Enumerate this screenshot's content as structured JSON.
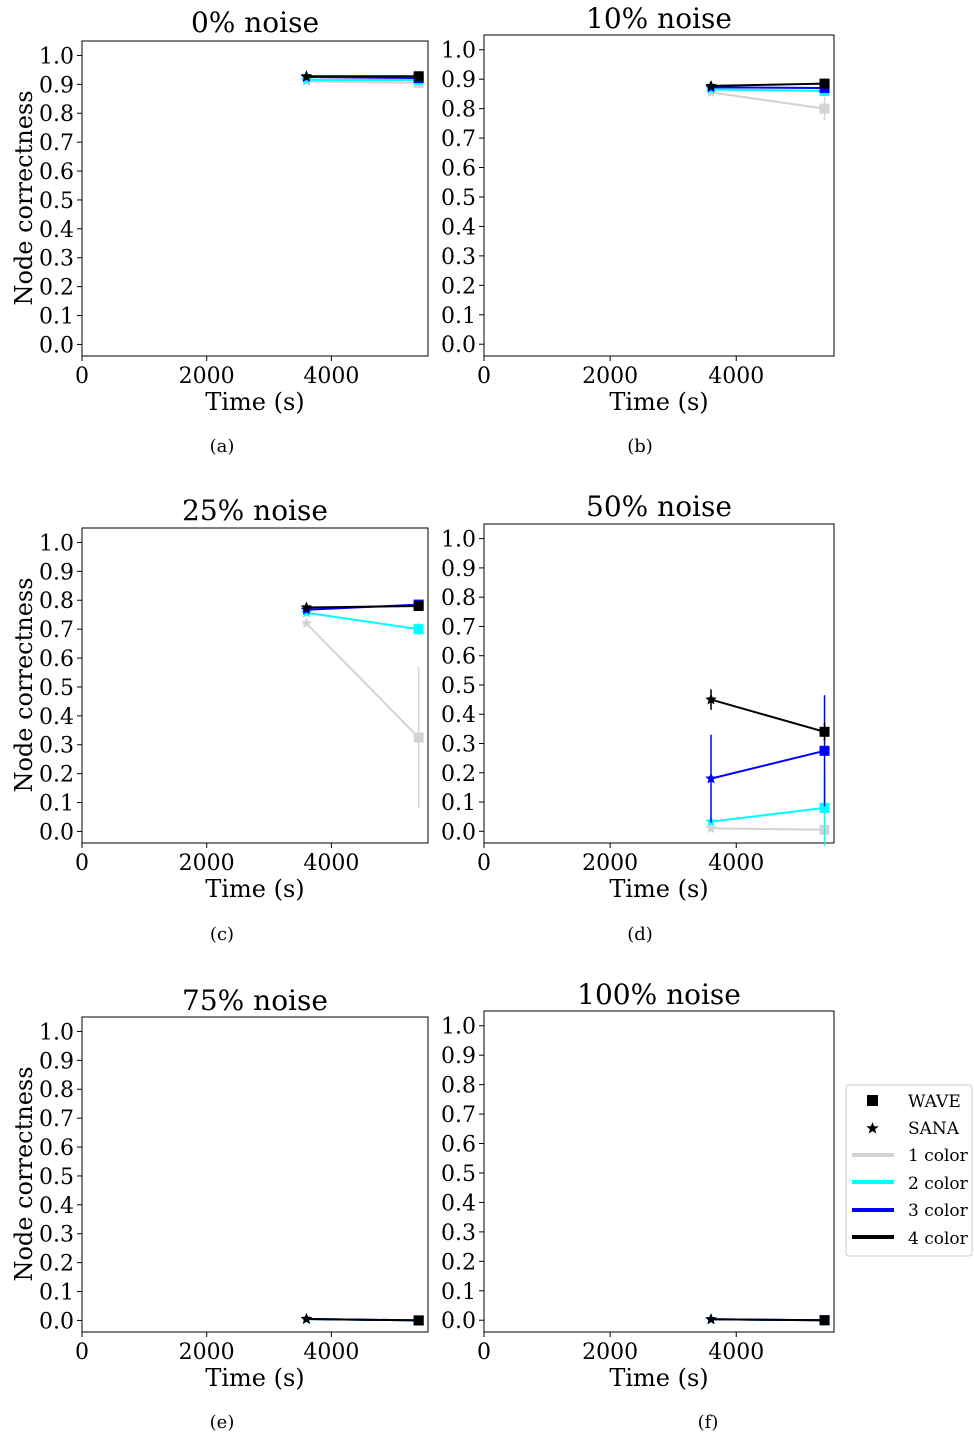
{
  "figure": {
    "captions": [
      "(a)",
      "(b)",
      "(c)",
      "(d)",
      "(e)",
      "(f)"
    ]
  },
  "legend": {
    "entries": [
      {
        "label": "WAVE",
        "kind": "marker",
        "marker": "square",
        "color": "#000000"
      },
      {
        "label": "SANA",
        "kind": "marker",
        "marker": "star",
        "color": "#000000"
      },
      {
        "label": "1 color",
        "kind": "line",
        "color": "#d3d3d3"
      },
      {
        "label": "2 color",
        "kind": "line",
        "color": "#00ffff"
      },
      {
        "label": "3 color",
        "kind": "line",
        "color": "#0000ff"
      },
      {
        "label": "4 color",
        "kind": "line",
        "color": "#000000"
      }
    ]
  },
  "chart_data": [
    {
      "type": "line",
      "title": "0% noise",
      "xlabel": "Time (s)",
      "ylabel": "Node correctness",
      "xlim": [
        0,
        5550
      ],
      "ylim": [
        -0.04,
        1.05
      ],
      "xticks": [
        0,
        2000,
        4000
      ],
      "yticks": [
        0.0,
        0.1,
        0.2,
        0.3,
        0.4,
        0.5,
        0.6,
        0.7,
        0.8,
        0.9,
        1.0
      ],
      "series": [
        {
          "name": "1 color",
          "color": "#d3d3d3",
          "x": [
            3600,
            5400
          ],
          "y": [
            0.91,
            0.905
          ],
          "err": [
            0.0,
            0.0
          ]
        },
        {
          "name": "2 color",
          "color": "#00ffff",
          "x": [
            3600,
            5400
          ],
          "y": [
            0.915,
            0.915
          ],
          "err": [
            0.0,
            0.0
          ]
        },
        {
          "name": "3 color",
          "color": "#0000ff",
          "x": [
            3600,
            5400
          ],
          "y": [
            0.925,
            0.922
          ],
          "err": [
            0.0,
            0.0
          ]
        },
        {
          "name": "4 color",
          "color": "#000000",
          "x": [
            3600,
            5400
          ],
          "y": [
            0.928,
            0.928
          ],
          "err": [
            0.0,
            0.0
          ]
        }
      ]
    },
    {
      "type": "line",
      "title": "10% noise",
      "xlabel": "Time (s)",
      "ylabel": "",
      "xlim": [
        0,
        5550
      ],
      "ylim": [
        -0.04,
        1.05
      ],
      "xticks": [
        0,
        2000,
        4000
      ],
      "yticks": [
        0.0,
        0.1,
        0.2,
        0.3,
        0.4,
        0.5,
        0.6,
        0.7,
        0.8,
        0.9,
        1.0
      ],
      "series": [
        {
          "name": "1 color",
          "color": "#d3d3d3",
          "x": [
            3600,
            5400
          ],
          "y": [
            0.855,
            0.8
          ],
          "err": [
            0.0,
            0.04
          ]
        },
        {
          "name": "2 color",
          "color": "#00ffff",
          "x": [
            3600,
            5400
          ],
          "y": [
            0.865,
            0.86
          ],
          "err": [
            0.0,
            0.0
          ]
        },
        {
          "name": "3 color",
          "color": "#0000ff",
          "x": [
            3600,
            5400
          ],
          "y": [
            0.872,
            0.87
          ],
          "err": [
            0.0,
            0.0
          ]
        },
        {
          "name": "4 color",
          "color": "#000000",
          "x": [
            3600,
            5400
          ],
          "y": [
            0.877,
            0.885
          ],
          "err": [
            0.0,
            0.0
          ]
        }
      ]
    },
    {
      "type": "line",
      "title": "25% noise",
      "xlabel": "Time (s)",
      "ylabel": "Node correctness",
      "xlim": [
        0,
        5550
      ],
      "ylim": [
        -0.04,
        1.05
      ],
      "xticks": [
        0,
        2000,
        4000
      ],
      "yticks": [
        0.0,
        0.1,
        0.2,
        0.3,
        0.4,
        0.5,
        0.6,
        0.7,
        0.8,
        0.9,
        1.0
      ],
      "series": [
        {
          "name": "1 color",
          "color": "#d3d3d3",
          "x": [
            3600,
            5400
          ],
          "y": [
            0.72,
            0.325
          ],
          "err": [
            0.0,
            0.245
          ]
        },
        {
          "name": "2 color",
          "color": "#00ffff",
          "x": [
            3600,
            5400
          ],
          "y": [
            0.757,
            0.7
          ],
          "err": [
            0.0,
            0.02
          ]
        },
        {
          "name": "3 color",
          "color": "#0000ff",
          "x": [
            3600,
            5400
          ],
          "y": [
            0.767,
            0.785
          ],
          "err": [
            0.0,
            0.0
          ]
        },
        {
          "name": "4 color",
          "color": "#000000",
          "x": [
            3600,
            5400
          ],
          "y": [
            0.775,
            0.78
          ],
          "err": [
            0.0,
            0.0
          ]
        }
      ]
    },
    {
      "type": "line",
      "title": "50% noise",
      "xlabel": "Time (s)",
      "ylabel": "",
      "xlim": [
        0,
        5550
      ],
      "ylim": [
        -0.04,
        1.05
      ],
      "xticks": [
        0,
        2000,
        4000
      ],
      "yticks": [
        0.0,
        0.1,
        0.2,
        0.3,
        0.4,
        0.5,
        0.6,
        0.7,
        0.8,
        0.9,
        1.0
      ],
      "series": [
        {
          "name": "1 color",
          "color": "#d3d3d3",
          "x": [
            3600,
            5400
          ],
          "y": [
            0.01,
            0.005
          ],
          "err": [
            0.0,
            0.0
          ]
        },
        {
          "name": "2 color",
          "color": "#00ffff",
          "x": [
            3600,
            5400
          ],
          "y": [
            0.033,
            0.08
          ],
          "err": [
            0.0,
            0.13
          ]
        },
        {
          "name": "3 color",
          "color": "#0000ff",
          "x": [
            3600,
            5400
          ],
          "y": [
            0.18,
            0.275
          ],
          "err": [
            0.15,
            0.19
          ]
        },
        {
          "name": "4 color",
          "color": "#000000",
          "x": [
            3600,
            5400
          ],
          "y": [
            0.45,
            0.34
          ],
          "err": [
            0.035,
            0.03
          ]
        }
      ]
    },
    {
      "type": "line",
      "title": "75% noise",
      "xlabel": "Time (s)",
      "ylabel": "Node correctness",
      "xlim": [
        0,
        5550
      ],
      "ylim": [
        -0.04,
        1.05
      ],
      "xticks": [
        0,
        2000,
        4000
      ],
      "yticks": [
        0.0,
        0.1,
        0.2,
        0.3,
        0.4,
        0.5,
        0.6,
        0.7,
        0.8,
        0.9,
        1.0
      ],
      "series": [
        {
          "name": "1 color",
          "color": "#d3d3d3",
          "x": [
            3600,
            5400
          ],
          "y": [
            0.005,
            0.0
          ],
          "err": [
            0.0,
            0.0
          ]
        },
        {
          "name": "2 color",
          "color": "#00ffff",
          "x": [
            3600,
            5400
          ],
          "y": [
            0.005,
            0.0
          ],
          "err": [
            0.0,
            0.0
          ]
        },
        {
          "name": "3 color",
          "color": "#0000ff",
          "x": [
            3600,
            5400
          ],
          "y": [
            0.005,
            0.0
          ],
          "err": [
            0.0,
            0.0
          ]
        },
        {
          "name": "4 color",
          "color": "#000000",
          "x": [
            3600,
            5400
          ],
          "y": [
            0.005,
            0.0
          ],
          "err": [
            0.0,
            0.0
          ]
        }
      ]
    },
    {
      "type": "line",
      "title": "100% noise",
      "xlabel": "Time (s)",
      "ylabel": "",
      "xlim": [
        0,
        5550
      ],
      "ylim": [
        -0.04,
        1.05
      ],
      "xticks": [
        0,
        2000,
        4000
      ],
      "yticks": [
        0.0,
        0.1,
        0.2,
        0.3,
        0.4,
        0.5,
        0.6,
        0.7,
        0.8,
        0.9,
        1.0
      ],
      "series": [
        {
          "name": "1 color",
          "color": "#d3d3d3",
          "x": [
            3600,
            5400
          ],
          "y": [
            0.003,
            0.0
          ],
          "err": [
            0.0,
            0.0
          ]
        },
        {
          "name": "2 color",
          "color": "#00ffff",
          "x": [
            3600,
            5400
          ],
          "y": [
            0.003,
            0.0
          ],
          "err": [
            0.0,
            0.0
          ]
        },
        {
          "name": "3 color",
          "color": "#0000ff",
          "x": [
            3600,
            5400
          ],
          "y": [
            0.003,
            0.0
          ],
          "err": [
            0.0,
            0.0
          ]
        },
        {
          "name": "4 color",
          "color": "#000000",
          "x": [
            3600,
            5400
          ],
          "y": [
            0.003,
            0.0
          ],
          "err": [
            0.0,
            0.0
          ]
        }
      ]
    }
  ]
}
